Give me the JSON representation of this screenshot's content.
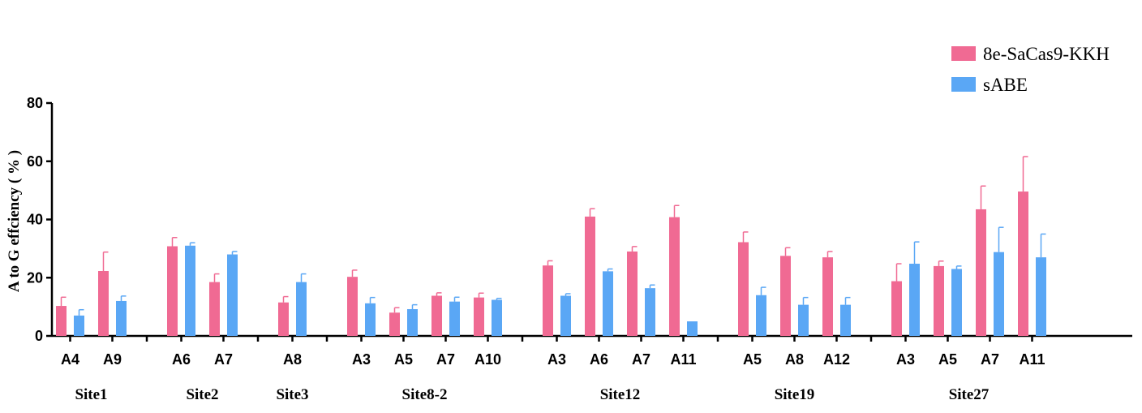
{
  "chart_data": {
    "type": "bar",
    "ylabel": "A to G effciency ( % )",
    "ylim": [
      0,
      80
    ],
    "yticks": [
      "0",
      "20",
      "40",
      "60",
      "80"
    ],
    "legend_position": "top-right",
    "series": [
      {
        "name": "8e-SaCas9-KKH",
        "color": "#F06A93"
      },
      {
        "name": "sABE",
        "color": "#5AA7F5"
      }
    ],
    "groups": [
      {
        "name": "Site1",
        "categories": [
          {
            "label": "A4",
            "values": [
              10.3,
              7.0
            ],
            "errors": [
              3.0,
              2.0
            ]
          },
          {
            "label": "A9",
            "values": [
              22.3,
              12.0
            ],
            "errors": [
              6.5,
              1.7
            ]
          }
        ]
      },
      {
        "name": "Site2",
        "categories": [
          {
            "label": "A6",
            "values": [
              30.8,
              31.0
            ],
            "errors": [
              3.0,
              1.0
            ]
          },
          {
            "label": "A7",
            "values": [
              18.5,
              28.0
            ],
            "errors": [
              2.8,
              1.0
            ]
          }
        ]
      },
      {
        "name": "Site3",
        "categories": [
          {
            "label": "A8",
            "values": [
              11.5,
              18.5
            ],
            "errors": [
              2.0,
              2.8
            ]
          }
        ]
      },
      {
        "name": "Site8-2",
        "categories": [
          {
            "label": "A3",
            "values": [
              20.3,
              11.2
            ],
            "errors": [
              2.3,
              2.0
            ]
          },
          {
            "label": "A5",
            "values": [
              8.0,
              9.2
            ],
            "errors": [
              1.7,
              1.5
            ]
          },
          {
            "label": "A7",
            "values": [
              13.8,
              11.8
            ],
            "errors": [
              1.0,
              1.5
            ]
          },
          {
            "label": "A10",
            "values": [
              13.2,
              12.4
            ],
            "errors": [
              1.5,
              0.5
            ]
          }
        ]
      },
      {
        "name": "Site12",
        "categories": [
          {
            "label": "A3",
            "values": [
              24.2,
              13.8
            ],
            "errors": [
              1.6,
              0.7
            ]
          },
          {
            "label": "A6",
            "values": [
              41.0,
              22.2
            ],
            "errors": [
              2.7,
              0.8
            ]
          },
          {
            "label": "A7",
            "values": [
              29.0,
              16.4
            ],
            "errors": [
              1.7,
              1.1
            ]
          },
          {
            "label": "A11",
            "values": [
              40.8,
              5.0
            ],
            "errors": [
              4.0,
              0.0
            ]
          }
        ]
      },
      {
        "name": "Site19",
        "categories": [
          {
            "label": "A5",
            "values": [
              32.2,
              14.0
            ],
            "errors": [
              3.5,
              2.7
            ]
          },
          {
            "label": "A8",
            "values": [
              27.5,
              10.7
            ],
            "errors": [
              2.8,
              2.5
            ]
          },
          {
            "label": "A12",
            "values": [
              27.0,
              10.7
            ],
            "errors": [
              2.0,
              2.5
            ]
          }
        ]
      },
      {
        "name": "Site27",
        "categories": [
          {
            "label": "A3",
            "values": [
              18.8,
              24.8
            ],
            "errors": [
              6.0,
              7.5
            ]
          },
          {
            "label": "A5",
            "values": [
              24.0,
              23.0
            ],
            "errors": [
              1.7,
              1.0
            ]
          },
          {
            "label": "A7",
            "values": [
              43.5,
              28.8
            ],
            "errors": [
              8.0,
              8.5
            ]
          },
          {
            "label": "A11",
            "values": [
              49.6,
              27.0
            ],
            "errors": [
              12.0,
              8.0
            ]
          }
        ]
      }
    ]
  }
}
